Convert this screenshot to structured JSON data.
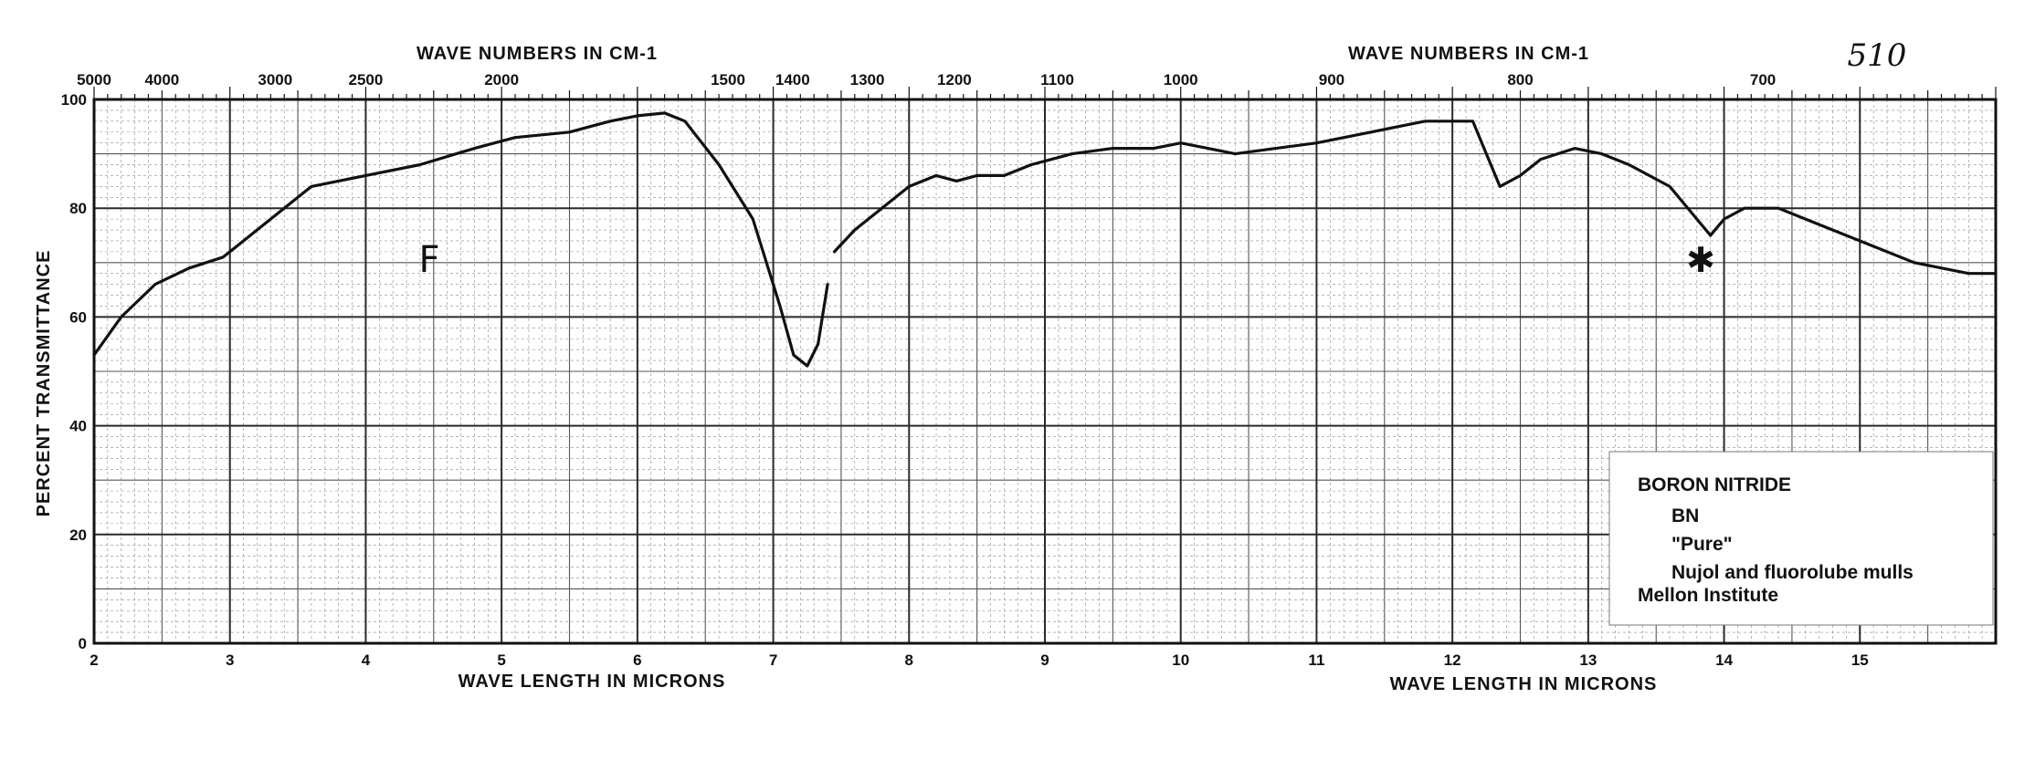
{
  "page_number": "510",
  "sample_mark": "F",
  "star_glyph": "✱",
  "legend": {
    "title": "BORON NITRIDE",
    "lines": [
      "BN",
      "\"Pure\"",
      "Nujol and fluorolube mulls"
    ],
    "source": "Mellon Institute"
  },
  "colors": {
    "ink": "#111111",
    "grid_major": "#2a2a2a",
    "grid_minor": "#8a8a8a",
    "paper": "#ffffff"
  },
  "chart_data": {
    "type": "line",
    "top_axis_left": {
      "title": "WAVE NUMBERS IN CM-1",
      "ticks": [
        "5000",
        "4000",
        "3000",
        "2500",
        "2000",
        "1500",
        "1400",
        "1300",
        "1200",
        "1100",
        "1000",
        "900",
        "800",
        "700"
      ]
    },
    "top_axis_right": {
      "title": "WAVE NUMBERS IN CM-1"
    },
    "xlabel_left": "WAVE LENGTH IN MICRONS",
    "xlabel_right": "WAVE LENGTH IN MICRONS",
    "ylabel": "PERCENT TRANSMITTANCE",
    "x_ticks": [
      "2",
      "3",
      "4",
      "5",
      "6",
      "7",
      "8",
      "9",
      "10",
      "11",
      "12",
      "13",
      "14",
      "15"
    ],
    "y_ticks": [
      "0",
      "20",
      "40",
      "60",
      "80",
      "100"
    ],
    "xlim": [
      2,
      16
    ],
    "ylim": [
      0,
      100
    ],
    "grid": true,
    "series": [
      {
        "segments": [
          [
            [
              2.0,
              53
            ],
            [
              2.2,
              60
            ],
            [
              2.45,
              66
            ],
            [
              2.7,
              69
            ],
            [
              2.95,
              71
            ],
            [
              3.2,
              76
            ],
            [
              3.6,
              84
            ],
            [
              4.0,
              86
            ],
            [
              4.4,
              88
            ],
            [
              4.8,
              91
            ],
            [
              5.1,
              93
            ],
            [
              5.5,
              94
            ],
            [
              5.8,
              96
            ],
            [
              6.0,
              97
            ],
            [
              6.2,
              97.5
            ],
            [
              6.35,
              96
            ],
            [
              6.6,
              88
            ],
            [
              6.85,
              78
            ],
            [
              7.05,
              62
            ],
            [
              7.15,
              53
            ],
            [
              7.25,
              51
            ],
            [
              7.33,
              55
            ],
            [
              7.4,
              66
            ]
          ],
          [
            [
              7.45,
              72
            ],
            [
              7.6,
              76
            ],
            [
              7.8,
              80
            ],
            [
              8.0,
              84
            ],
            [
              8.2,
              86
            ],
            [
              8.35,
              85
            ],
            [
              8.5,
              86
            ],
            [
              8.7,
              86
            ],
            [
              8.9,
              88
            ],
            [
              9.2,
              90
            ],
            [
              9.5,
              91
            ],
            [
              9.8,
              91
            ],
            [
              10.0,
              92
            ],
            [
              10.2,
              91
            ],
            [
              10.4,
              90
            ],
            [
              10.7,
              91
            ],
            [
              11.0,
              92
            ],
            [
              11.4,
              94
            ],
            [
              11.8,
              96
            ],
            [
              12.0,
              96
            ],
            [
              12.15,
              96
            ],
            [
              12.25,
              90
            ],
            [
              12.35,
              84
            ],
            [
              12.5,
              86
            ],
            [
              12.65,
              89
            ],
            [
              12.9,
              91
            ],
            [
              13.1,
              90
            ],
            [
              13.3,
              88
            ],
            [
              13.6,
              84
            ],
            [
              13.8,
              78
            ],
            [
              13.9,
              75
            ],
            [
              14.0,
              78
            ],
            [
              14.15,
              80
            ],
            [
              14.4,
              80
            ],
            [
              14.7,
              77
            ],
            [
              15.0,
              74
            ],
            [
              15.4,
              70
            ],
            [
              15.8,
              68
            ],
            [
              16.0,
              68
            ]
          ]
        ]
      }
    ]
  }
}
